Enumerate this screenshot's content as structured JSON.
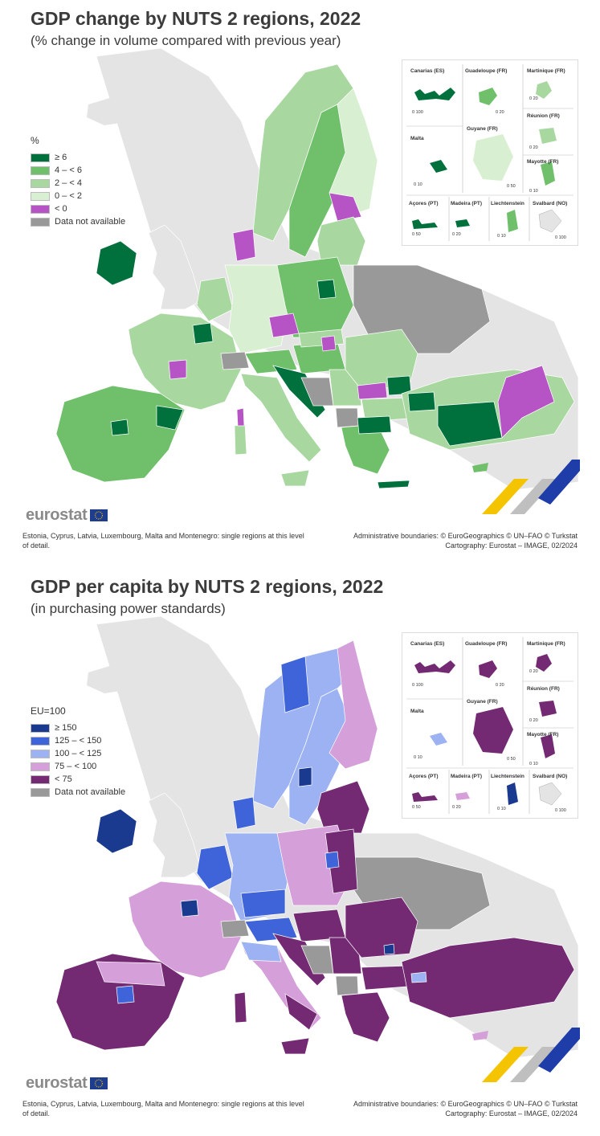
{
  "map1": {
    "title": "GDP change by NUTS 2 regions, 2022",
    "subtitle": "(% change in volume compared with previous year)",
    "legend_title": "%",
    "legend": [
      {
        "label": "≥ 6",
        "color": "#00703c"
      },
      {
        "label": "4 – < 6",
        "color": "#6fbf6b"
      },
      {
        "label": "2 – < 4",
        "color": "#a8d8a0"
      },
      {
        "label": "0 – < 2",
        "color": "#d9efd2"
      },
      {
        "label": "< 0",
        "color": "#b654c5"
      },
      {
        "label": "Data not available",
        "color": "#999999"
      }
    ]
  },
  "map2": {
    "title": "GDP per capita by NUTS 2 regions, 2022",
    "subtitle": "(in purchasing power standards)",
    "legend_title": "EU=100",
    "legend": [
      {
        "label": "≥ 150",
        "color": "#1a3a8f"
      },
      {
        "label": "125 – < 150",
        "color": "#3f63d9"
      },
      {
        "label": "100 – < 125",
        "color": "#9db2f2"
      },
      {
        "label": "75 – < 100",
        "color": "#d59fd9"
      },
      {
        "label": "< 75",
        "color": "#732a73"
      },
      {
        "label": "Data not available",
        "color": "#999999"
      }
    ]
  },
  "insets": {
    "canarias": "Canarias (ES)",
    "guadeloupe": "Guadeloupe (FR)",
    "martinique": "Martinique (FR)",
    "reunion": "Réunion (FR)",
    "malta": "Malta",
    "guyane": "Guyane (FR)",
    "mayotte": "Mayotte (FR)",
    "acores": "Açores (PT)",
    "madeira": "Madeira (PT)",
    "liechtenstein": "Liechtenstein",
    "svalbard": "Svalbard (NO)",
    "scale_canarias": "0  100",
    "scale_guadeloupe": "0  20",
    "scale_martinique": "0  20",
    "scale_reunion": "0  20",
    "scale_malta": "0  10",
    "scale_guyane": "0 50",
    "scale_mayotte": "0  10",
    "scale_acores": "0  50",
    "scale_madeira": "0  20",
    "scale_liechtenstein": "0  10",
    "scale_svalbard": "0 100"
  },
  "logo": "eurostat",
  "footnote_left": "Estonia, Cyprus, Latvia, Luxembourg, Malta and Montenegro: single regions at this level of detail.",
  "footnote_right_1": "Administrative boundaries: © EuroGeographics © UN–FAO © Turkstat",
  "footnote_right_2": "Cartography: Eurostat – IMAGE, 02/2024"
}
